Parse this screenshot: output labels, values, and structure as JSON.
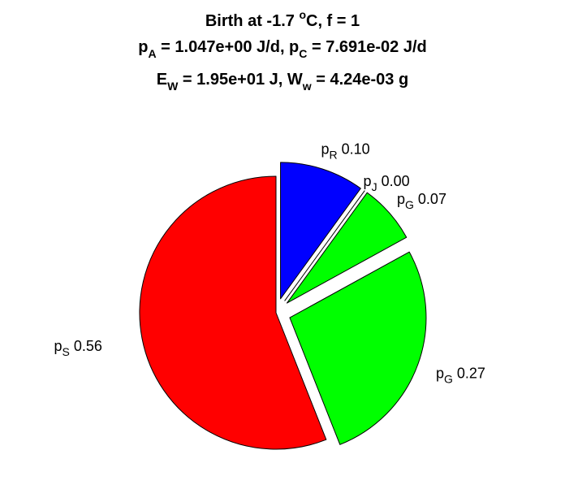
{
  "chart_data": {
    "type": "pie",
    "title_lines": [
      {
        "parts": [
          {
            "t": "Birth at -1.7 "
          },
          {
            "t": "o",
            "sup": true
          },
          {
            "t": "C, f = 1"
          }
        ]
      },
      {
        "parts": [
          {
            "t": "p"
          },
          {
            "t": "A",
            "sub": true
          },
          {
            "t": " = 1.047e+00 J/d, p"
          },
          {
            "t": "C",
            "sub": true
          },
          {
            "t": " = 7.691e-02 J/d"
          }
        ]
      },
      {
        "parts": [
          {
            "t": "E"
          },
          {
            "t": "W",
            "sub": true
          },
          {
            "t": " = 1.95e+01 J, W"
          },
          {
            "t": "w",
            "sub": true
          },
          {
            "t": " = 4.24e-03 g"
          }
        ]
      }
    ],
    "slices": [
      {
        "symbol": "p",
        "subscript": "R",
        "value": 0.1,
        "value_label": "0.10",
        "color": "#0000ff",
        "exploded": true
      },
      {
        "symbol": "p",
        "subscript": "J",
        "value": 0.0,
        "value_label": "0.00",
        "color": "#ffffff",
        "exploded": true
      },
      {
        "symbol": "p",
        "subscript": "G",
        "value": 0.07,
        "value_label": "0.07",
        "color": "#00ff00",
        "exploded": true
      },
      {
        "symbol": "p",
        "subscript": "G",
        "value": 0.27,
        "value_label": "0.27",
        "color": "#00ff00",
        "exploded": true
      },
      {
        "symbol": "p",
        "subscript": "S",
        "value": 0.56,
        "value_label": "0.56",
        "color": "#ff0000",
        "exploded": false
      }
    ],
    "start_angle": "12 o'clock",
    "direction": "clockwise",
    "legend": "none"
  }
}
